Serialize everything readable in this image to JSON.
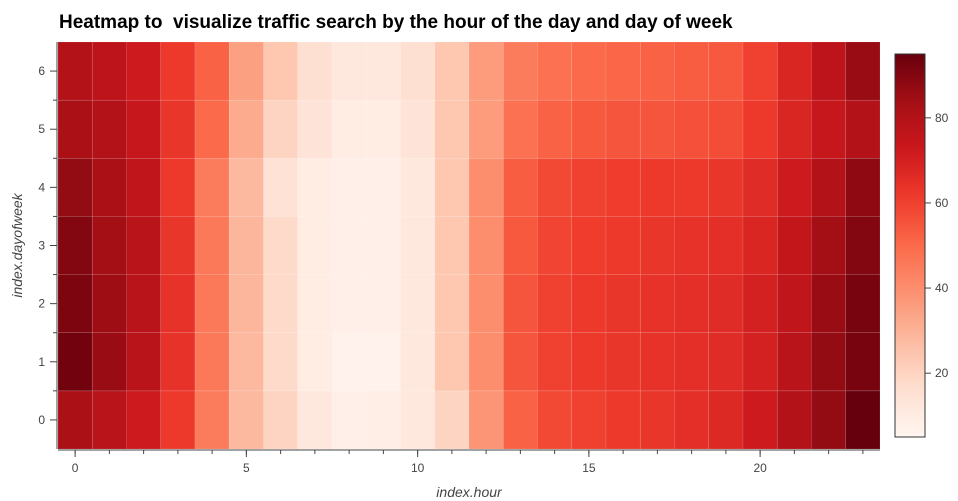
{
  "chart_data": {
    "type": "heatmap",
    "title": "Heatmap to  visualize traffic search by the hour of the day and day of week",
    "xlabel": "index.hour",
    "ylabel": "index.dayofweek",
    "x": [
      0,
      1,
      2,
      3,
      4,
      5,
      6,
      7,
      8,
      9,
      10,
      11,
      12,
      13,
      14,
      15,
      16,
      17,
      18,
      19,
      20,
      21,
      22,
      23
    ],
    "y": [
      0,
      1,
      2,
      3,
      4,
      5,
      6
    ],
    "x_ticks": [
      0,
      5,
      10,
      15,
      20
    ],
    "y_ticks": [
      0,
      1,
      2,
      3,
      4,
      5,
      6
    ],
    "colorbar_ticks": [
      20,
      40,
      60,
      80
    ],
    "clim": [
      5,
      95
    ],
    "colormap": "Reds",
    "grid": false,
    "colorbar_placement": "right",
    "values": [
      [
        82,
        78,
        72,
        62,
        45,
        28,
        20,
        12,
        8,
        9,
        12,
        20,
        38,
        52,
        58,
        60,
        62,
        63,
        65,
        67,
        72,
        80,
        87,
        95
      ],
      [
        93,
        86,
        78,
        64,
        46,
        28,
        18,
        10,
        7,
        7,
        12,
        24,
        40,
        55,
        60,
        62,
        63,
        64,
        65,
        66,
        70,
        78,
        87,
        92
      ],
      [
        91,
        85,
        78,
        64,
        46,
        29,
        18,
        10,
        8,
        8,
        12,
        24,
        40,
        55,
        60,
        62,
        63,
        64,
        65,
        66,
        70,
        76,
        86,
        92
      ],
      [
        90,
        84,
        78,
        63,
        46,
        29,
        18,
        10,
        8,
        8,
        12,
        24,
        40,
        54,
        59,
        61,
        62,
        63,
        64,
        65,
        68,
        75,
        84,
        90
      ],
      [
        87,
        82,
        76,
        62,
        45,
        28,
        15,
        10,
        8,
        8,
        12,
        24,
        40,
        53,
        58,
        60,
        61,
        62,
        62,
        63,
        66,
        72,
        80,
        88
      ],
      [
        82,
        80,
        74,
        63,
        50,
        32,
        20,
        14,
        10,
        10,
        14,
        24,
        36,
        48,
        52,
        54,
        55,
        55,
        56,
        57,
        62,
        68,
        74,
        80
      ],
      [
        80,
        77,
        72,
        62,
        52,
        35,
        24,
        16,
        12,
        12,
        16,
        24,
        36,
        45,
        48,
        50,
        51,
        52,
        53,
        54,
        60,
        68,
        77,
        86
      ]
    ]
  }
}
